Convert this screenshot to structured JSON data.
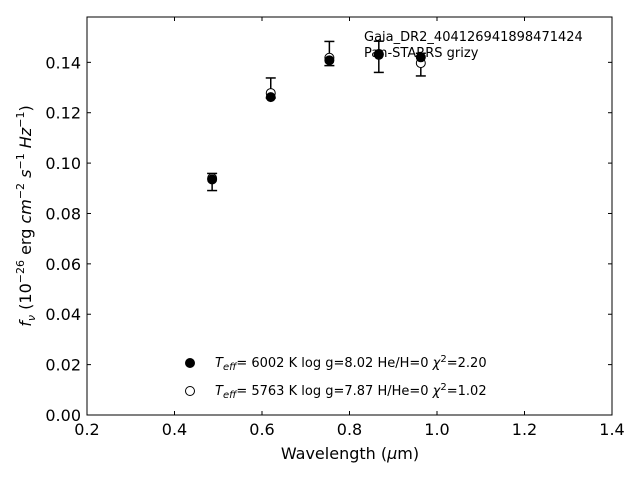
{
  "chart_data": {
    "type": "scatter",
    "title": "",
    "xlabel": "Wavelength (μm)",
    "ylabel": "f_ν (10^-26 erg cm^-2 s^-1 Hz^-1)",
    "xlim": [
      0.2,
      1.4
    ],
    "ylim": [
      0.0,
      0.158
    ],
    "xticks": [
      "0.2",
      "0.4",
      "0.6",
      "0.8",
      "1.0",
      "1.2",
      "1.4"
    ],
    "yticks": [
      "0.00",
      "0.02",
      "0.04",
      "0.06",
      "0.08",
      "0.10",
      "0.12",
      "0.14"
    ],
    "grid": false,
    "annotations": [
      "Gaia_DR2_404126941898471424",
      "Pan-STARRS grizy"
    ],
    "observed": {
      "x": [
        0.486,
        0.62,
        0.754,
        0.867,
        0.963
      ],
      "y": [
        0.0925,
        0.1298,
        0.1435,
        0.1422,
        0.1391
      ],
      "yerr": [
        0.0034,
        0.004,
        0.0048,
        0.0062,
        0.0045
      ]
    },
    "series": [
      {
        "name": "T_eff= 6002 K log g=8.02 He/H=0 χ²=2.20",
        "marker": "filled-circle",
        "x": [
          0.486,
          0.62,
          0.754,
          0.867,
          0.963
        ],
        "y": [
          0.0935,
          0.1262,
          0.1408,
          0.1433,
          0.142
        ]
      },
      {
        "name": "T_eff= 5763 K log g=7.87 H/He=0 χ²=1.02",
        "marker": "open-circle",
        "x": [
          0.486,
          0.62,
          0.754,
          0.867,
          0.963
        ],
        "y": [
          0.094,
          0.1278,
          0.1418,
          0.143,
          0.1397
        ]
      }
    ]
  },
  "legend": {
    "entries": [
      {
        "teff_value": "6002 K",
        "logg": "log g=8.02",
        "comp": "He/H=0",
        "chi2": "=2.20"
      },
      {
        "teff_value": "5763 K",
        "logg": "log g=7.87",
        "comp": "H/He=0",
        "chi2": "=1.02"
      }
    ]
  }
}
